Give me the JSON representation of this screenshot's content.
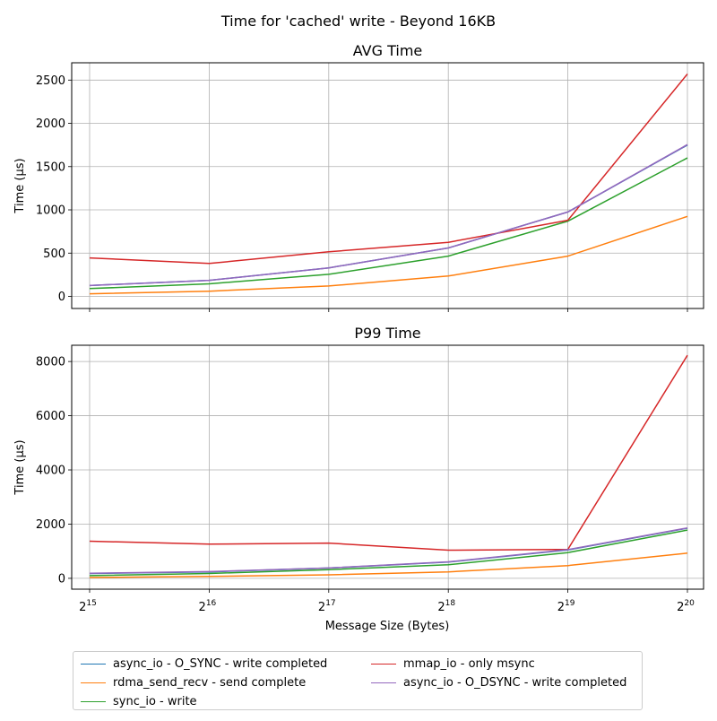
{
  "chart_data": {
    "type": "line",
    "title": "Time for 'cached' write - Beyond 16KB",
    "xlabel": "Message Size (Bytes)",
    "x_ticks": [
      {
        "base": "2",
        "exp": "15"
      },
      {
        "base": "2",
        "exp": "16"
      },
      {
        "base": "2",
        "exp": "17"
      },
      {
        "base": "2",
        "exp": "18"
      },
      {
        "base": "2",
        "exp": "19"
      },
      {
        "base": "2",
        "exp": "20"
      }
    ],
    "x": [
      32768,
      65536,
      131072,
      262144,
      524288,
      1048576
    ],
    "x_scale": "log2",
    "grid": true,
    "legend_position": "bottom",
    "series_colors": [
      "#1f77b4",
      "#ff7f0e",
      "#2ca02c",
      "#d62728",
      "#9467bd"
    ],
    "legend": [
      {
        "name": "async_io - O_SYNC - write completed",
        "color": "#1f77b4"
      },
      {
        "name": "rdma_send_recv - send complete",
        "color": "#ff7f0e"
      },
      {
        "name": "sync_io - write",
        "color": "#2ca02c"
      },
      {
        "name": "mmap_io - only msync",
        "color": "#d62728"
      },
      {
        "name": "async_io - O_DSYNC - write completed",
        "color": "#9467bd"
      }
    ],
    "subplots": [
      {
        "title": "AVG Time",
        "ylabel": "Time (µs)",
        "ylim": [
          -140,
          2700
        ],
        "y_ticks": [
          0,
          500,
          1000,
          1500,
          2000,
          2500
        ],
        "series": [
          {
            "name": "async_io - O_SYNC - write completed",
            "values": [
              125,
              185,
              330,
              560,
              975,
              1750
            ]
          },
          {
            "name": "rdma_send_recv - send complete",
            "values": [
              30,
              60,
              120,
              235,
              465,
              925
            ]
          },
          {
            "name": "sync_io - write",
            "values": [
              90,
              145,
              255,
              465,
              870,
              1600
            ]
          },
          {
            "name": "mmap_io - only msync",
            "values": [
              445,
              380,
              515,
              625,
              880,
              2570
            ]
          },
          {
            "name": "async_io - O_DSYNC - write completed",
            "values": [
              125,
              185,
              330,
              560,
              975,
              1755
            ]
          }
        ]
      },
      {
        "title": "P99 Time",
        "ylabel": "Time (µs)",
        "ylim": [
          -400,
          8600
        ],
        "y_ticks": [
          0,
          2000,
          4000,
          6000,
          8000
        ],
        "series": [
          {
            "name": "async_io - O_SYNC - write completed",
            "values": [
              180,
              240,
              380,
              600,
              1050,
              1850
            ]
          },
          {
            "name": "rdma_send_recv - send complete",
            "values": [
              30,
              70,
              130,
              240,
              470,
              930
            ]
          },
          {
            "name": "sync_io - write",
            "values": [
              100,
              180,
              320,
              500,
              950,
              1780
            ]
          },
          {
            "name": "mmap_io - only msync",
            "values": [
              1370,
              1260,
              1300,
              1040,
              1070,
              8230
            ]
          },
          {
            "name": "async_io - O_DSYNC - write completed",
            "values": [
              190,
              250,
              380,
              610,
              1060,
              1860
            ]
          }
        ]
      }
    ]
  }
}
